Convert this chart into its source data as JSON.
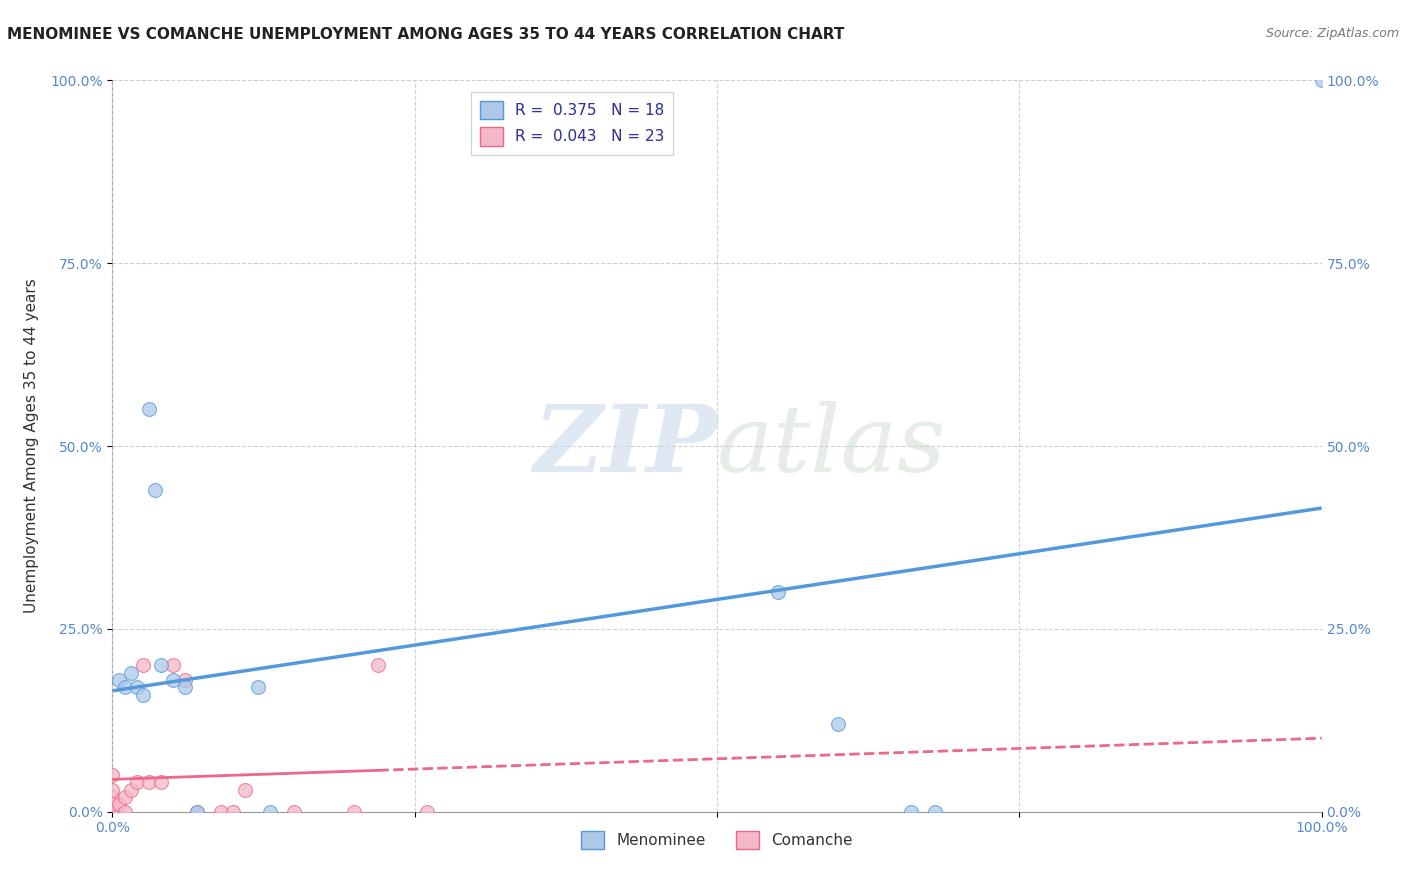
{
  "title": "MENOMINEE VS COMANCHE UNEMPLOYMENT AMONG AGES 35 TO 44 YEARS CORRELATION CHART",
  "source": "Source: ZipAtlas.com",
  "ylabel": "Unemployment Among Ages 35 to 44 years",
  "legend_r1": "R =  0.375   N = 18",
  "legend_r2": "R =  0.043   N = 23",
  "menominee_color": "#adc8e8",
  "comanche_color": "#f5b8c8",
  "menominee_line_color": "#5599dd",
  "comanche_line_color": "#ee6688",
  "menominee_x": [
    0.005,
    0.01,
    0.015,
    0.02,
    0.025,
    0.03,
    0.035,
    0.04,
    0.05,
    0.06,
    0.07,
    0.12,
    0.13,
    0.55,
    0.6,
    0.66,
    0.68,
    1.0
  ],
  "menominee_y": [
    0.18,
    0.17,
    0.19,
    0.17,
    0.16,
    0.55,
    0.44,
    0.2,
    0.18,
    0.17,
    0.0,
    0.17,
    0.0,
    0.3,
    0.12,
    0.0,
    0.0,
    1.0
  ],
  "comanche_x": [
    0.0,
    0.0,
    0.0,
    0.0,
    0.0,
    0.005,
    0.01,
    0.01,
    0.015,
    0.02,
    0.025,
    0.03,
    0.04,
    0.05,
    0.06,
    0.07,
    0.09,
    0.1,
    0.11,
    0.15,
    0.2,
    0.22,
    0.26
  ],
  "comanche_y": [
    0.0,
    0.01,
    0.02,
    0.03,
    0.05,
    0.01,
    0.0,
    0.02,
    0.03,
    0.04,
    0.2,
    0.04,
    0.04,
    0.2,
    0.18,
    0.0,
    0.0,
    0.0,
    0.03,
    0.0,
    0.0,
    0.2,
    0.0
  ],
  "xlim": [
    0.0,
    1.0
  ],
  "ylim": [
    0.0,
    1.0
  ],
  "yticks": [
    0.0,
    0.25,
    0.5,
    0.75,
    1.0
  ],
  "xticks": [
    0.0,
    0.25,
    0.5,
    0.75,
    1.0
  ],
  "yticklabels": [
    "0.0%",
    "25.0%",
    "50.0%",
    "75.0%",
    "100.0%"
  ],
  "xticklabels_bottom": [
    "0.0%",
    "",
    "",
    "",
    "100.0%"
  ],
  "xticklabels_right": [
    "0.0%",
    "25.0%",
    "50.0%",
    "75.0%",
    "100.0%"
  ],
  "background_color": "#ffffff",
  "grid_color": "#cccccc",
  "title_fontsize": 11,
  "axis_label_fontsize": 11,
  "tick_fontsize": 10,
  "tick_color": "#5588cc",
  "marker_size": 100
}
